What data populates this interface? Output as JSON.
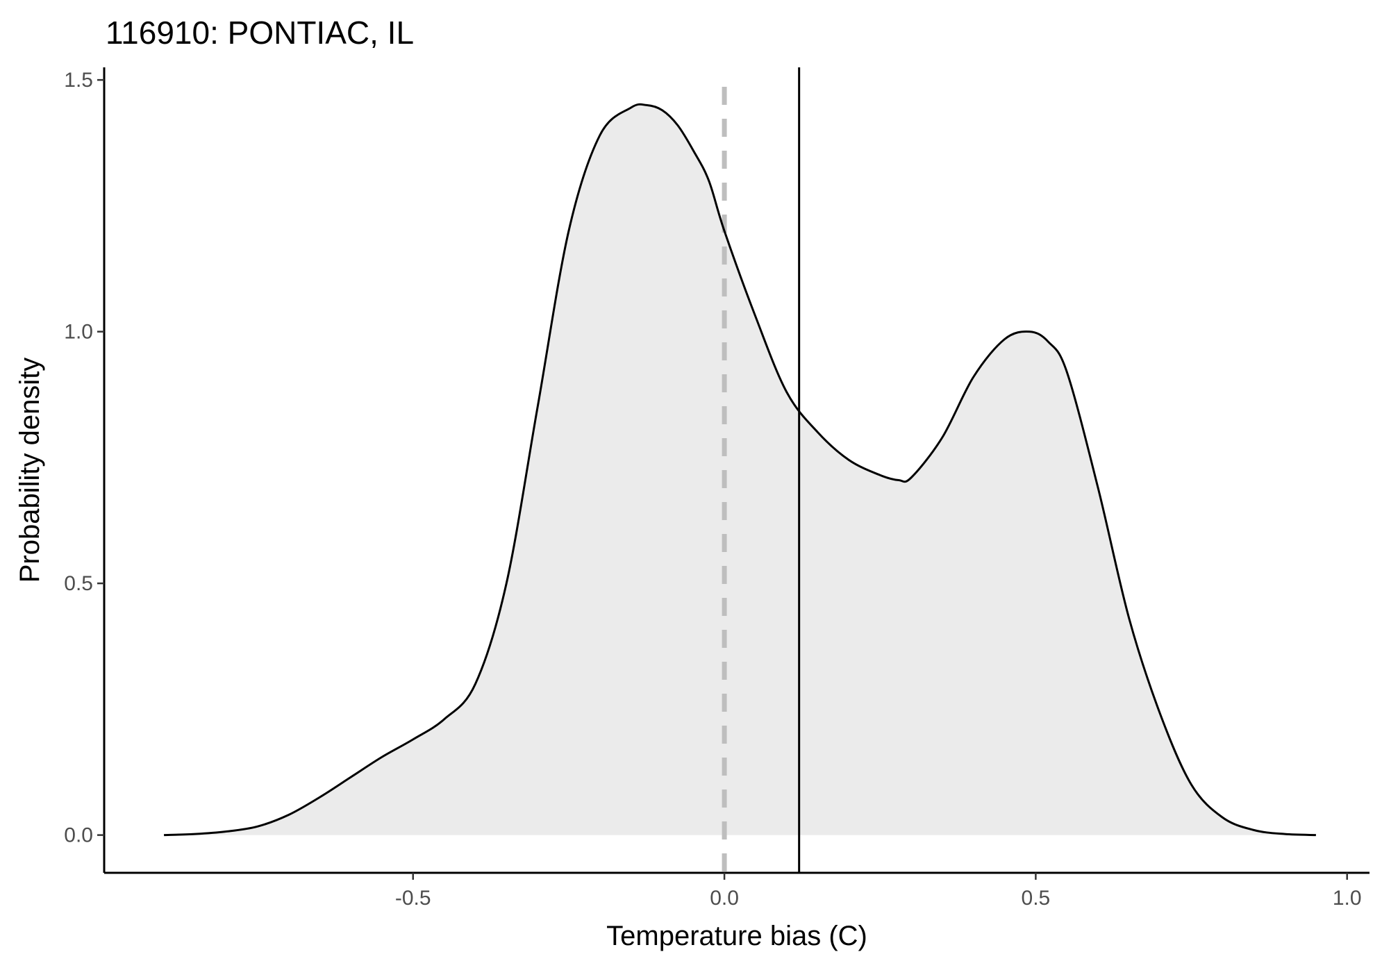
{
  "chart_data": {
    "type": "area",
    "title": "116910: PONTIAC, IL",
    "xlabel": "Temperature bias (C)",
    "ylabel": "Probability density",
    "xlim": [
      -0.996,
      1.036
    ],
    "ylim": [
      -0.075,
      1.525
    ],
    "x_ticks": [
      -0.5,
      0.0,
      0.5,
      1.0
    ],
    "x_tick_labels": [
      "-0.5",
      "0.0",
      "0.5",
      "1.0"
    ],
    "y_ticks": [
      0.0,
      0.5,
      1.0,
      1.5
    ],
    "y_tick_labels": [
      "0.0",
      "0.5",
      "1.0",
      "1.5"
    ],
    "grid": false,
    "fill_color": "#ebebeb",
    "line_color": "#000000",
    "reference_lines": [
      {
        "name": "zero-line",
        "x": 0.0,
        "style": "dashed",
        "color": "#bebebe"
      },
      {
        "name": "mean-line",
        "x": 0.12,
        "style": "solid",
        "color": "#000000"
      }
    ],
    "density": {
      "x": [
        -0.9,
        -0.85,
        -0.8,
        -0.75,
        -0.7,
        -0.65,
        -0.6,
        -0.55,
        -0.5,
        -0.45,
        -0.4,
        -0.35,
        -0.3,
        -0.25,
        -0.2,
        -0.15,
        -0.125,
        -0.1,
        -0.075,
        -0.05,
        -0.025,
        0.0,
        0.05,
        0.1,
        0.15,
        0.2,
        0.25,
        0.28,
        0.3,
        0.35,
        0.4,
        0.45,
        0.49,
        0.52,
        0.55,
        0.6,
        0.65,
        0.7,
        0.75,
        0.8,
        0.85,
        0.9,
        0.95
      ],
      "y": [
        0.0,
        0.002,
        0.007,
        0.017,
        0.04,
        0.075,
        0.115,
        0.155,
        0.19,
        0.23,
        0.3,
        0.5,
        0.85,
        1.2,
        1.39,
        1.445,
        1.45,
        1.44,
        1.41,
        1.36,
        1.3,
        1.2,
        1.03,
        0.88,
        0.8,
        0.745,
        0.715,
        0.705,
        0.71,
        0.79,
        0.91,
        0.985,
        1.0,
        0.98,
        0.92,
        0.69,
        0.43,
        0.24,
        0.1,
        0.035,
        0.01,
        0.002,
        0.0
      ]
    }
  }
}
